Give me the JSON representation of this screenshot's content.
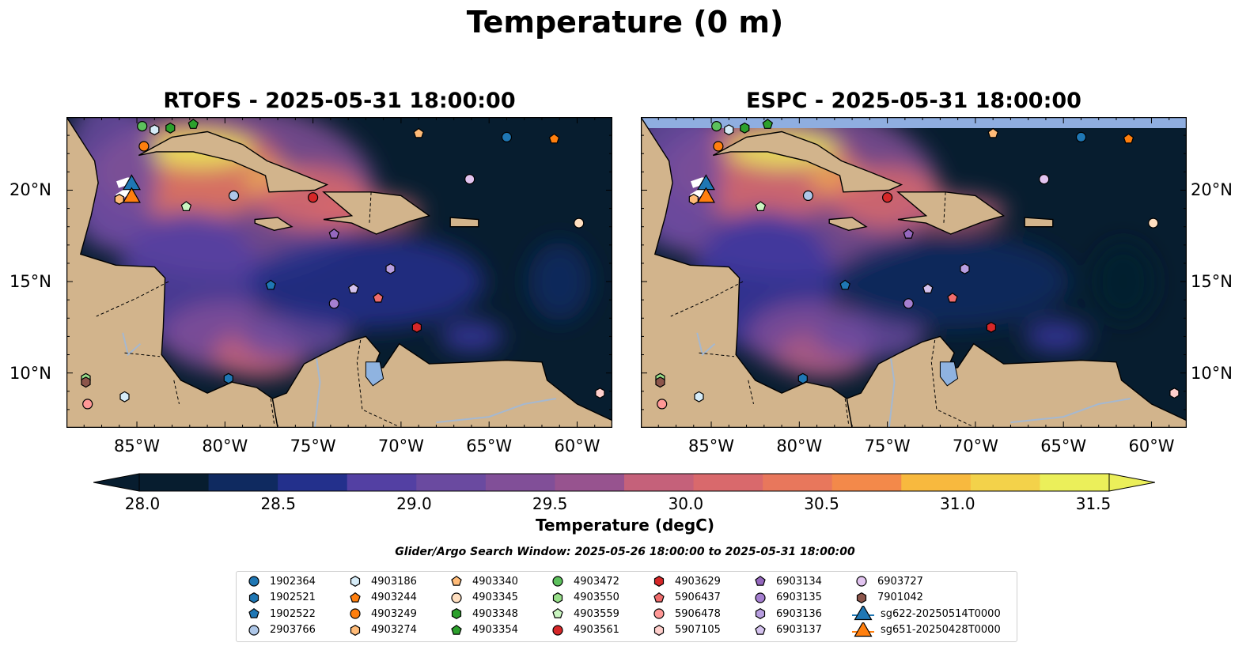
{
  "figure": {
    "suptitle": "Temperature (0 m)",
    "left_title": "RTOFS - 2025-05-31 18:00:00",
    "right_title": "ESPC - 2025-05-31 18:00:00",
    "colorbar_label": "Temperature (degC)",
    "search_window": "Glider/Argo Search Window: 2025-05-26 18:00:00 to 2025-05-31 18:00:00",
    "colormap": "thermal",
    "colors": {
      "ocean_cold": "#071d2f",
      "land": "#d2b48c",
      "lake": "#8fb3e0",
      "river": "#a5b8d0",
      "hot": "#ebef5a"
    }
  },
  "axes": {
    "lon_range": [
      -89,
      -58
    ],
    "lat_range": [
      7,
      24
    ],
    "x_ticks": [
      {
        "value": -85,
        "label": "85°W"
      },
      {
        "value": -80,
        "label": "80°W"
      },
      {
        "value": -75,
        "label": "75°W"
      },
      {
        "value": -70,
        "label": "70°W"
      },
      {
        "value": -65,
        "label": "65°W"
      },
      {
        "value": -60,
        "label": "60°W"
      }
    ],
    "y_ticks": [
      {
        "value": 20,
        "label": "20°N"
      },
      {
        "value": 15,
        "label": "15°N"
      },
      {
        "value": 10,
        "label": "10°N"
      }
    ]
  },
  "colorbar": {
    "min": 28.0,
    "max": 31.5,
    "step": 0.25,
    "extend": "both",
    "ticks": [
      "28.0",
      "28.5",
      "29.0",
      "29.5",
      "30.0",
      "30.5",
      "31.0",
      "31.5"
    ]
  },
  "legend": [
    {
      "label": "1902364",
      "marker": "circle",
      "color": "#1f77b4"
    },
    {
      "label": "1902521",
      "marker": "hexagon",
      "color": "#1f77b4"
    },
    {
      "label": "1902522",
      "marker": "pentagon",
      "color": "#1f77b4"
    },
    {
      "label": "2903766",
      "marker": "circle",
      "color": "#aec7e8"
    },
    {
      "label": "4903186",
      "marker": "hexagon",
      "color": "#d6ecf8"
    },
    {
      "label": "4903244",
      "marker": "pentagon",
      "color": "#ff7f0e"
    },
    {
      "label": "4903249",
      "marker": "circle",
      "color": "#ff7f0e"
    },
    {
      "label": "4903274",
      "marker": "hexagon",
      "color": "#ffbb78"
    },
    {
      "label": "4903340",
      "marker": "pentagon",
      "color": "#ffbb78"
    },
    {
      "label": "4903345",
      "marker": "circle",
      "color": "#ffdfc0"
    },
    {
      "label": "4903348",
      "marker": "hexagon",
      "color": "#2ca02c"
    },
    {
      "label": "4903354",
      "marker": "pentagon",
      "color": "#2ca02c"
    },
    {
      "label": "4903472",
      "marker": "circle",
      "color": "#5cc05c"
    },
    {
      "label": "4903550",
      "marker": "hexagon",
      "color": "#98df8a"
    },
    {
      "label": "4903559",
      "marker": "pentagon",
      "color": "#c9f5c0"
    },
    {
      "label": "4903561",
      "marker": "circle",
      "color": "#d62728"
    },
    {
      "label": "4903629",
      "marker": "hexagon",
      "color": "#d62728"
    },
    {
      "label": "5906437",
      "marker": "pentagon",
      "color": "#f06c6c"
    },
    {
      "label": "5906478",
      "marker": "circle",
      "color": "#ff9896"
    },
    {
      "label": "5907105",
      "marker": "hexagon",
      "color": "#ffcfcc"
    },
    {
      "label": "6903134",
      "marker": "pentagon",
      "color": "#9467bd"
    },
    {
      "label": "6903135",
      "marker": "circle",
      "color": "#a57fd0"
    },
    {
      "label": "6903136",
      "marker": "hexagon",
      "color": "#b89ee0"
    },
    {
      "label": "6903137",
      "marker": "pentagon",
      "color": "#d4c2ee"
    },
    {
      "label": "6903727",
      "marker": "circle",
      "color": "#e2c4f0"
    },
    {
      "label": "7901042",
      "marker": "hexagon",
      "color": "#8c564b"
    },
    {
      "label": "sg622-20250514T0000",
      "marker": "triangle",
      "color": "#1f77b4"
    },
    {
      "label": "sg651-20250428T0000",
      "marker": "triangle",
      "color": "#ff7f0e"
    }
  ],
  "floats": [
    {
      "id": "1902364",
      "lon": -64.0,
      "lat": 22.9
    },
    {
      "id": "1902521",
      "lon": -79.8,
      "lat": 9.7
    },
    {
      "id": "1902522",
      "lon": -77.4,
      "lat": 14.8
    },
    {
      "id": "2903766",
      "lon": -79.5,
      "lat": 19.7
    },
    {
      "id": "4903186",
      "lon": -85.7,
      "lat": 8.7
    },
    {
      "id": "4903244",
      "lon": -61.3,
      "lat": 22.8
    },
    {
      "id": "4903249",
      "lon": -84.6,
      "lat": 22.4
    },
    {
      "id": "4903274",
      "lon": -86.0,
      "lat": 19.5
    },
    {
      "id": "4903340",
      "lon": -69.0,
      "lat": 23.1
    },
    {
      "id": "4903345",
      "lon": -59.9,
      "lat": 18.2
    },
    {
      "id": "4903348",
      "lon": -83.1,
      "lat": 23.4
    },
    {
      "id": "4903354",
      "lon": -81.8,
      "lat": 23.6
    },
    {
      "id": "4903472",
      "lon": -84.7,
      "lat": 23.5
    },
    {
      "id": "4903550",
      "lon": -87.9,
      "lat": 9.7
    },
    {
      "id": "4903559",
      "lon": -82.2,
      "lat": 19.1
    },
    {
      "id": "4903561",
      "lon": -75.0,
      "lat": 19.6
    },
    {
      "id": "4903629",
      "lon": -69.1,
      "lat": 12.5
    },
    {
      "id": "5906437",
      "lon": -71.3,
      "lat": 14.1
    },
    {
      "id": "5906478",
      "lon": -87.8,
      "lat": 8.3
    },
    {
      "id": "5907105",
      "lon": -58.7,
      "lat": 8.9
    },
    {
      "id": "6903134",
      "lon": -73.8,
      "lat": 17.6
    },
    {
      "id": "6903135",
      "lon": -73.8,
      "lat": 13.8
    },
    {
      "id": "6903136",
      "lon": -70.6,
      "lat": 15.7
    },
    {
      "id": "6903137",
      "lon": -72.7,
      "lat": 14.6
    },
    {
      "id": "6903727",
      "lon": -66.1,
      "lat": 20.6
    },
    {
      "id": "7901042",
      "lon": -87.9,
      "lat": 9.5
    },
    {
      "id": "4903186b",
      "lon": -84.0,
      "lat": 23.3
    }
  ],
  "gliders": [
    {
      "id": "sg622-20250514T0000",
      "lon": -85.3,
      "lat": 20.4,
      "track": [
        [
          -86.1,
          20.3
        ],
        [
          -85.5,
          20.5
        ],
        [
          -85.3,
          20.4
        ]
      ]
    },
    {
      "id": "sg651-20250428T0000",
      "lon": -85.3,
      "lat": 19.7,
      "track": [
        [
          -86.1,
          19.6
        ],
        [
          -85.6,
          19.9
        ],
        [
          -85.3,
          19.7
        ]
      ]
    }
  ]
}
